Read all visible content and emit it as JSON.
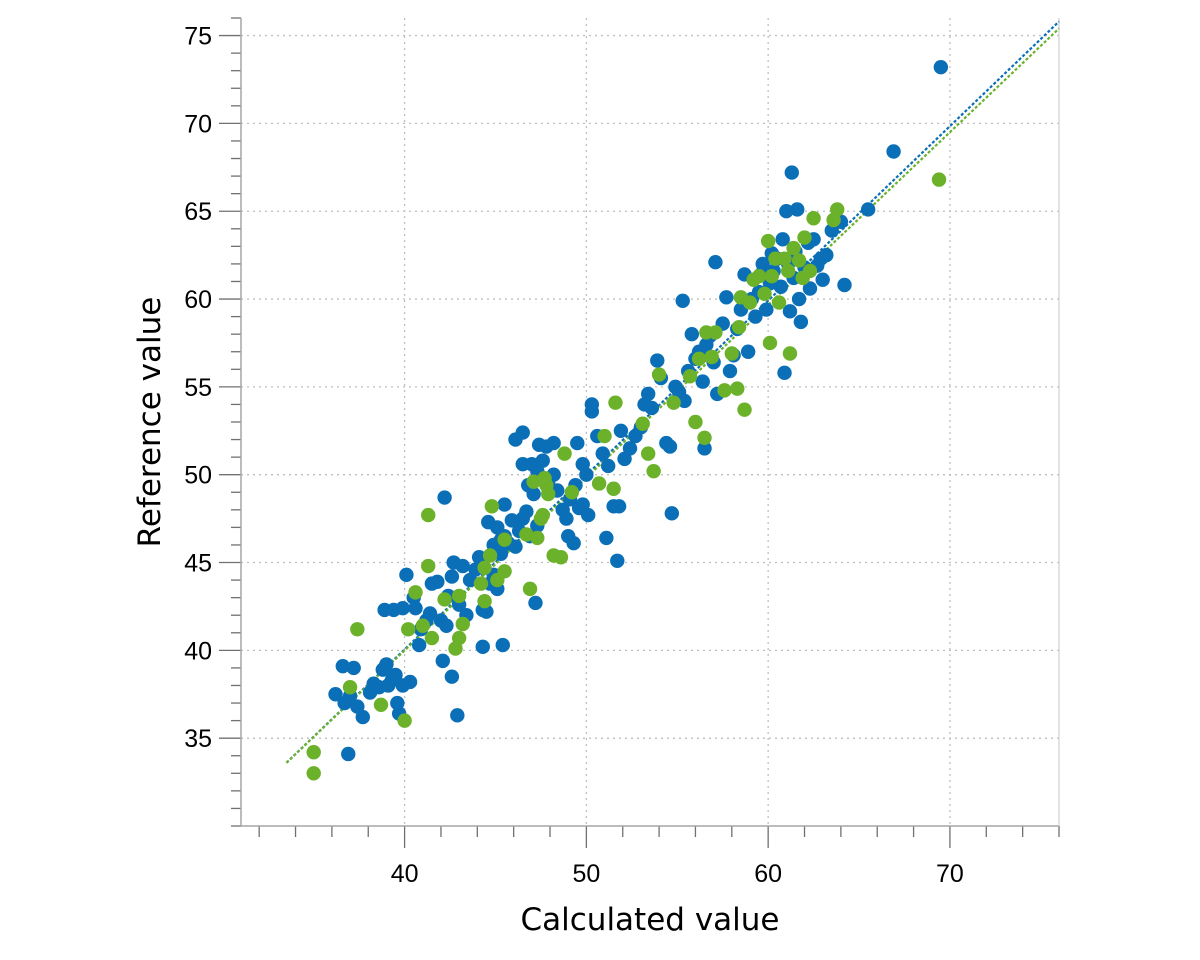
{
  "chart_data": {
    "type": "scatter",
    "xlabel": "Calculated value",
    "ylabel": "Reference value",
    "xlim": [
      31,
      76
    ],
    "ylim": [
      30,
      76
    ],
    "x_ticks": [
      40,
      50,
      60,
      70
    ],
    "y_ticks": [
      35,
      40,
      45,
      50,
      55,
      60,
      65,
      70,
      75
    ],
    "grid": true,
    "legend": "none",
    "colors": {
      "series_a": "#0a6fb7",
      "series_b": "#6bb12a",
      "grid": "#bfbfbf",
      "axis": "#a6a6a6"
    },
    "series": [
      {
        "color": "#0a6fb7",
        "trendline": [
          [
            33.5,
            33.6
          ],
          [
            76,
            75.8
          ]
        ],
        "points": [
          [
            36.2,
            37.5
          ],
          [
            36.6,
            39.1
          ],
          [
            36.7,
            37.0
          ],
          [
            37.0,
            37.4
          ],
          [
            37.2,
            39.0
          ],
          [
            37.4,
            36.8
          ],
          [
            36.9,
            34.1
          ],
          [
            37.7,
            36.2
          ],
          [
            38.1,
            37.6
          ],
          [
            38.3,
            38.1
          ],
          [
            38.6,
            37.9
          ],
          [
            38.8,
            38.9
          ],
          [
            39.0,
            39.2
          ],
          [
            39.1,
            38.0
          ],
          [
            39.3,
            38.3
          ],
          [
            39.5,
            38.6
          ],
          [
            39.6,
            37.0
          ],
          [
            39.7,
            36.4
          ],
          [
            39.9,
            38.0
          ],
          [
            40.3,
            38.2
          ],
          [
            38.9,
            42.3
          ],
          [
            39.4,
            42.3
          ],
          [
            39.9,
            42.4
          ],
          [
            40.1,
            44.3
          ],
          [
            40.5,
            43.0
          ],
          [
            40.6,
            42.4
          ],
          [
            40.8,
            40.3
          ],
          [
            40.9,
            41.2
          ],
          [
            41.2,
            41.7
          ],
          [
            41.4,
            42.1
          ],
          [
            41.5,
            43.8
          ],
          [
            41.8,
            43.9
          ],
          [
            42.0,
            41.7
          ],
          [
            42.3,
            41.4
          ],
          [
            42.4,
            43.1
          ],
          [
            42.6,
            44.2
          ],
          [
            42.7,
            45.0
          ],
          [
            43.0,
            42.6
          ],
          [
            43.2,
            44.8
          ],
          [
            43.4,
            42.0
          ],
          [
            43.6,
            44.0
          ],
          [
            43.9,
            44.6
          ],
          [
            44.1,
            45.3
          ],
          [
            44.3,
            42.3
          ],
          [
            44.5,
            42.2
          ],
          [
            44.7,
            43.8
          ],
          [
            44.9,
            44.3
          ],
          [
            45.1,
            43.5
          ],
          [
            45.3,
            45.5
          ],
          [
            45.5,
            46.5
          ],
          [
            42.2,
            48.7
          ],
          [
            42.1,
            39.4
          ],
          [
            42.6,
            38.5
          ],
          [
            42.9,
            36.3
          ],
          [
            44.3,
            40.2
          ],
          [
            45.4,
            40.3
          ],
          [
            44.6,
            47.3
          ],
          [
            44.9,
            46.0
          ],
          [
            45.1,
            47.0
          ],
          [
            45.3,
            46.3
          ],
          [
            45.5,
            48.3
          ],
          [
            45.7,
            46.1
          ],
          [
            45.9,
            47.4
          ],
          [
            46.1,
            45.9
          ],
          [
            46.3,
            46.8
          ],
          [
            46.5,
            47.5
          ],
          [
            46.7,
            47.9
          ],
          [
            46.9,
            46.5
          ],
          [
            47.1,
            48.9
          ],
          [
            47.3,
            47.1
          ],
          [
            46.5,
            50.6
          ],
          [
            46.8,
            49.4
          ],
          [
            47.0,
            50.6
          ],
          [
            47.3,
            50.2
          ],
          [
            47.6,
            50.8
          ],
          [
            47.9,
            49.6
          ],
          [
            48.2,
            50.0
          ],
          [
            48.4,
            49.1
          ],
          [
            48.7,
            48.0
          ],
          [
            48.9,
            47.5
          ],
          [
            49.1,
            48.6
          ],
          [
            49.4,
            49.4
          ],
          [
            49.6,
            48.1
          ],
          [
            49.8,
            48.3
          ],
          [
            50.1,
            47.7
          ],
          [
            49.0,
            46.5
          ],
          [
            49.3,
            46.1
          ],
          [
            47.2,
            42.7
          ],
          [
            46.1,
            52.0
          ],
          [
            46.5,
            52.4
          ],
          [
            47.4,
            51.7
          ],
          [
            47.8,
            51.6
          ],
          [
            48.2,
            51.8
          ],
          [
            49.5,
            51.8
          ],
          [
            49.8,
            50.6
          ],
          [
            50.0,
            50.0
          ],
          [
            50.3,
            53.6
          ],
          [
            50.3,
            54.0
          ],
          [
            50.6,
            52.2
          ],
          [
            50.9,
            51.2
          ],
          [
            51.2,
            50.5
          ],
          [
            51.5,
            48.2
          ],
          [
            51.8,
            48.2
          ],
          [
            51.1,
            46.4
          ],
          [
            51.7,
            45.1
          ],
          [
            51.9,
            52.5
          ],
          [
            52.1,
            50.9
          ],
          [
            52.4,
            51.5
          ],
          [
            52.7,
            52.2
          ],
          [
            53.0,
            52.7
          ],
          [
            53.2,
            54.0
          ],
          [
            53.4,
            54.6
          ],
          [
            53.6,
            53.8
          ],
          [
            53.9,
            56.5
          ],
          [
            54.1,
            55.5
          ],
          [
            54.4,
            51.8
          ],
          [
            54.6,
            51.6
          ],
          [
            54.7,
            47.8
          ],
          [
            54.9,
            55.0
          ],
          [
            55.1,
            54.7
          ],
          [
            55.3,
            59.9
          ],
          [
            55.4,
            54.2
          ],
          [
            55.6,
            55.9
          ],
          [
            55.8,
            58.0
          ],
          [
            56.0,
            56.6
          ],
          [
            56.2,
            57.0
          ],
          [
            56.4,
            55.3
          ],
          [
            56.5,
            51.5
          ],
          [
            56.6,
            57.4
          ],
          [
            56.8,
            57.9
          ],
          [
            57.0,
            56.4
          ],
          [
            57.2,
            54.6
          ],
          [
            57.1,
            62.1
          ],
          [
            57.5,
            58.6
          ],
          [
            57.7,
            60.1
          ],
          [
            57.9,
            55.9
          ],
          [
            58.1,
            56.8
          ],
          [
            58.3,
            58.3
          ],
          [
            58.5,
            59.4
          ],
          [
            58.7,
            61.4
          ],
          [
            58.9,
            57.0
          ],
          [
            59.1,
            60.0
          ],
          [
            59.3,
            59.0
          ],
          [
            59.5,
            60.4
          ],
          [
            59.6,
            61.4
          ],
          [
            59.7,
            62.0
          ],
          [
            59.9,
            59.4
          ],
          [
            60.1,
            60.9
          ],
          [
            60.2,
            62.6
          ],
          [
            60.3,
            61.6
          ],
          [
            60.5,
            62.3
          ],
          [
            60.7,
            60.7
          ],
          [
            60.8,
            63.4
          ],
          [
            60.9,
            55.8
          ],
          [
            61.0,
            65.0
          ],
          [
            61.1,
            62.0
          ],
          [
            61.2,
            59.3
          ],
          [
            61.3,
            67.2
          ],
          [
            61.4,
            61.2
          ],
          [
            61.5,
            62.7
          ],
          [
            61.6,
            65.1
          ],
          [
            61.7,
            60.0
          ],
          [
            61.8,
            58.7
          ],
          [
            62.0,
            61.8
          ],
          [
            62.2,
            63.2
          ],
          [
            62.3,
            60.6
          ],
          [
            62.5,
            63.4
          ],
          [
            62.7,
            61.9
          ],
          [
            62.9,
            62.3
          ],
          [
            63.0,
            61.1
          ],
          [
            63.2,
            62.5
          ],
          [
            63.5,
            63.9
          ],
          [
            64.0,
            64.4
          ],
          [
            64.2,
            60.8
          ],
          [
            65.5,
            65.1
          ],
          [
            66.9,
            68.4
          ],
          [
            69.5,
            73.2
          ]
        ]
      },
      {
        "color": "#6bb12a",
        "trendline": [
          [
            33.5,
            33.6
          ],
          [
            76,
            75.4
          ]
        ],
        "points": [
          [
            35.0,
            34.2
          ],
          [
            35.0,
            33.0
          ],
          [
            37.0,
            37.9
          ],
          [
            37.4,
            41.2
          ],
          [
            38.7,
            36.9
          ],
          [
            40.0,
            36.0
          ],
          [
            40.2,
            41.2
          ],
          [
            40.6,
            43.3
          ],
          [
            41.0,
            41.4
          ],
          [
            41.3,
            44.8
          ],
          [
            41.3,
            47.7
          ],
          [
            41.5,
            40.7
          ],
          [
            42.2,
            42.9
          ],
          [
            42.8,
            40.1
          ],
          [
            43.0,
            43.1
          ],
          [
            43.2,
            41.5
          ],
          [
            43.0,
            40.7
          ],
          [
            44.2,
            43.8
          ],
          [
            44.4,
            44.7
          ],
          [
            44.4,
            42.8
          ],
          [
            44.7,
            45.4
          ],
          [
            44.8,
            48.2
          ],
          [
            45.1,
            44.0
          ],
          [
            45.5,
            46.3
          ],
          [
            45.5,
            44.5
          ],
          [
            46.7,
            46.6
          ],
          [
            46.9,
            43.5
          ],
          [
            47.1,
            49.6
          ],
          [
            47.3,
            46.4
          ],
          [
            47.5,
            47.5
          ],
          [
            47.8,
            49.4
          ],
          [
            47.9,
            48.9
          ],
          [
            47.6,
            47.7
          ],
          [
            47.7,
            49.8
          ],
          [
            48.2,
            45.4
          ],
          [
            48.6,
            45.3
          ],
          [
            48.8,
            51.2
          ],
          [
            49.2,
            49.0
          ],
          [
            50.7,
            49.5
          ],
          [
            51.0,
            52.2
          ],
          [
            51.5,
            49.2
          ],
          [
            51.6,
            54.1
          ],
          [
            53.1,
            52.9
          ],
          [
            53.4,
            51.2
          ],
          [
            53.7,
            50.2
          ],
          [
            54.0,
            55.7
          ],
          [
            54.8,
            54.1
          ],
          [
            55.7,
            55.6
          ],
          [
            56.0,
            53.0
          ],
          [
            56.2,
            56.6
          ],
          [
            56.5,
            52.1
          ],
          [
            56.6,
            58.1
          ],
          [
            56.9,
            56.7
          ],
          [
            57.1,
            58.1
          ],
          [
            57.6,
            54.8
          ],
          [
            58.0,
            56.9
          ],
          [
            58.3,
            54.9
          ],
          [
            58.4,
            58.4
          ],
          [
            58.5,
            60.1
          ],
          [
            58.7,
            53.7
          ],
          [
            59.0,
            59.8
          ],
          [
            59.2,
            61.1
          ],
          [
            59.5,
            61.3
          ],
          [
            59.8,
            60.3
          ],
          [
            60.0,
            63.3
          ],
          [
            60.1,
            57.5
          ],
          [
            60.2,
            61.3
          ],
          [
            60.4,
            62.3
          ],
          [
            60.6,
            59.8
          ],
          [
            60.9,
            62.3
          ],
          [
            61.1,
            61.6
          ],
          [
            61.2,
            56.9
          ],
          [
            61.4,
            62.9
          ],
          [
            61.7,
            62.2
          ],
          [
            61.9,
            61.2
          ],
          [
            62.0,
            63.5
          ],
          [
            62.3,
            61.6
          ],
          [
            62.5,
            64.6
          ],
          [
            63.6,
            64.5
          ],
          [
            63.8,
            65.1
          ],
          [
            69.4,
            66.8
          ]
        ]
      }
    ]
  }
}
